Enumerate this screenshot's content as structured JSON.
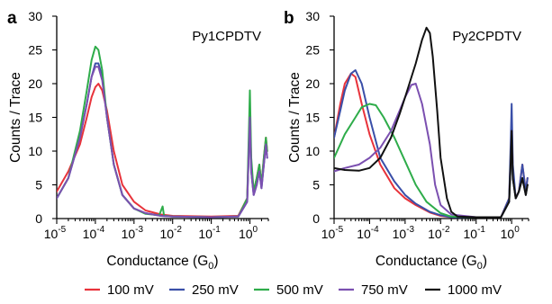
{
  "legend": {
    "placement": "bottom-center",
    "entries": [
      {
        "name": "100 mV",
        "color": "#e8333b"
      },
      {
        "name": "250 mV",
        "color": "#3a4fa8"
      },
      {
        "name": "500 mV",
        "color": "#2eac4a"
      },
      {
        "name": "750 mV",
        "color": "#7b50b0"
      },
      {
        "name": "1000 mV",
        "color": "#111111"
      }
    ]
  },
  "chart_data": [
    {
      "type": "line",
      "panel": "a",
      "molecule": "Py1CPDTV",
      "xlabel": "Conductance (G0)",
      "xlabel_parts": {
        "main": "Conductance (G",
        "sub": "0",
        "end": ")"
      },
      "ylabel": "Counts / Trace",
      "x_scale": "log",
      "xlim": [
        1e-05,
        3
      ],
      "ylim": [
        0,
        30
      ],
      "grid": false,
      "x_ticks": [
        {
          "base": "10",
          "exp": "-5",
          "value": 1e-05
        },
        {
          "base": "10",
          "exp": "-4",
          "value": 0.0001
        },
        {
          "base": "10",
          "exp": "-3",
          "value": 0.001
        },
        {
          "base": "10",
          "exp": "-2",
          "value": 0.01
        },
        {
          "base": "10",
          "exp": "-1",
          "value": 0.1
        },
        {
          "base": "10",
          "exp": "0",
          "value": 1
        }
      ],
      "y_ticks": [
        "0",
        "5",
        "10",
        "15",
        "20",
        "25",
        "30"
      ],
      "series": [
        {
          "name": "100 mV",
          "x": [
            1e-05,
            2e-05,
            4e-05,
            6e-05,
            8e-05,
            0.0001,
            0.00012,
            0.00015,
            0.0002,
            0.0003,
            0.0005,
            0.001,
            0.002,
            0.005,
            0.01,
            0.1,
            0.5,
            0.85,
            0.95,
            1.0,
            1.08,
            1.25,
            1.5,
            1.75,
            2,
            2.3,
            2.6,
            2.8
          ],
          "y": [
            4,
            7,
            11,
            15,
            18,
            19.5,
            20,
            19,
            16,
            10,
            5,
            2.5,
            1.2,
            0.6,
            0.4,
            0.3,
            0.4,
            3,
            12,
            16,
            8,
            4,
            6,
            8,
            5,
            9,
            12,
            10
          ]
        },
        {
          "name": "250 mV",
          "x": [
            1e-05,
            2e-05,
            4e-05,
            6e-05,
            8e-05,
            0.0001,
            0.00012,
            0.00015,
            0.0002,
            0.0003,
            0.0005,
            0.001,
            0.002,
            0.005,
            0.01,
            0.1,
            0.5,
            0.85,
            0.95,
            1.0,
            1.08,
            1.25,
            1.5,
            1.75,
            2,
            2.3,
            2.6,
            2.8
          ],
          "y": [
            3,
            6,
            12,
            17,
            21,
            23,
            23,
            21,
            15,
            8,
            3.5,
            1.5,
            0.8,
            0.4,
            0.3,
            0.2,
            0.3,
            2.5,
            11,
            15,
            7,
            3.5,
            5,
            7,
            4.5,
            8,
            11,
            9
          ]
        },
        {
          "name": "500 mV",
          "x": [
            1e-05,
            2e-05,
            4e-05,
            6e-05,
            8e-05,
            0.0001,
            0.00012,
            0.00015,
            0.0002,
            0.0003,
            0.0005,
            0.001,
            0.002,
            0.0045,
            0.0055,
            0.006,
            0.007,
            0.01,
            0.1,
            0.5,
            0.85,
            0.95,
            1.0,
            1.08,
            1.25,
            1.5,
            1.75,
            2,
            2.3,
            2.6,
            2.8
          ],
          "y": [
            3,
            6,
            13,
            19,
            23.5,
            25.5,
            25,
            22,
            15,
            8,
            3.5,
            1.5,
            0.7,
            0.5,
            1.8,
            0.4,
            0.4,
            0.3,
            0.2,
            0.3,
            3,
            14,
            19,
            9,
            4,
            6,
            8,
            5,
            9,
            12,
            10
          ]
        },
        {
          "name": "750 mV",
          "x": [
            1e-05,
            2e-05,
            4e-05,
            6e-05,
            8e-05,
            0.0001,
            0.00012,
            0.00015,
            0.0002,
            0.0003,
            0.0005,
            0.001,
            0.002,
            0.005,
            0.01,
            0.1,
            0.5,
            0.85,
            0.95,
            1.0,
            1.08,
            1.25,
            1.5,
            1.75,
            2,
            2.3,
            2.6,
            2.8
          ],
          "y": [
            3,
            6,
            12,
            17,
            21,
            22.5,
            22.5,
            20.5,
            15,
            8,
            3.5,
            1.5,
            0.8,
            0.4,
            0.3,
            0.2,
            0.3,
            2.5,
            11,
            15,
            7,
            3.5,
            5,
            7,
            4.5,
            8,
            11,
            9
          ]
        }
      ]
    },
    {
      "type": "line",
      "panel": "b",
      "molecule": "Py2CPDTV",
      "xlabel": "Conductance (G0)",
      "xlabel_parts": {
        "main": "Conductance (G",
        "sub": "0",
        "end": ")"
      },
      "ylabel": "Counts / Trace",
      "x_scale": "log",
      "xlim": [
        1e-05,
        3
      ],
      "ylim": [
        0,
        30
      ],
      "grid": false,
      "x_ticks": [
        {
          "base": "10",
          "exp": "-5",
          "value": 1e-05
        },
        {
          "base": "10",
          "exp": "-4",
          "value": 0.0001
        },
        {
          "base": "10",
          "exp": "-3",
          "value": 0.001
        },
        {
          "base": "10",
          "exp": "-2",
          "value": 0.01
        },
        {
          "base": "10",
          "exp": "-1",
          "value": 0.1
        },
        {
          "base": "10",
          "exp": "0",
          "value": 1
        }
      ],
      "y_ticks": [
        "0",
        "5",
        "10",
        "15",
        "20",
        "25",
        "30"
      ],
      "series": [
        {
          "name": "100 mV",
          "x": [
            1e-05,
            1.5e-05,
            2e-05,
            3e-05,
            4e-05,
            6e-05,
            0.0001,
            0.0002,
            0.0005,
            0.001,
            0.002,
            0.005,
            0.01,
            0.02,
            0.1,
            0.5,
            0.85,
            0.95,
            1.0,
            1.08,
            1.3,
            1.6,
            2.0,
            2.5,
            2.8
          ],
          "y": [
            12,
            17,
            20,
            21.5,
            21,
            17,
            12.5,
            8,
            4.5,
            3,
            2,
            0.9,
            0.4,
            0.2,
            0.2,
            0.2,
            3,
            10,
            14,
            7,
            3,
            4,
            8,
            4,
            6
          ]
        },
        {
          "name": "250 mV",
          "x": [
            1e-05,
            1.5e-05,
            2e-05,
            3e-05,
            4e-05,
            6e-05,
            0.0001,
            0.0002,
            0.0005,
            0.001,
            0.002,
            0.005,
            0.01,
            0.02,
            0.1,
            0.5,
            0.85,
            0.95,
            1.0,
            1.08,
            1.3,
            1.6,
            2.0,
            2.5,
            2.8
          ],
          "y": [
            12,
            16,
            19,
            21.5,
            22,
            20,
            15,
            9,
            5.5,
            3.5,
            2.2,
            1,
            0.5,
            0.2,
            0.2,
            0.2,
            3,
            12,
            17,
            8,
            3,
            4,
            8,
            4,
            6
          ]
        },
        {
          "name": "500 mV",
          "x": [
            1e-05,
            2e-05,
            4e-05,
            6e-05,
            0.0001,
            0.00015,
            0.00025,
            0.0005,
            0.001,
            0.002,
            0.004,
            0.01,
            0.02,
            0.1,
            0.5,
            0.85,
            0.95,
            1.0,
            1.08,
            1.3,
            1.6,
            2.0,
            2.5,
            2.8
          ],
          "y": [
            9,
            12.5,
            15,
            16.5,
            17,
            16.8,
            15,
            12,
            8.5,
            5,
            2.5,
            0.8,
            0.3,
            0.2,
            0.2,
            2.5,
            9,
            12,
            6,
            3,
            4,
            6,
            3.5,
            5
          ]
        },
        {
          "name": "750 mV",
          "x": [
            1e-05,
            2e-05,
            5e-05,
            0.0001,
            0.0002,
            0.0004,
            0.0007,
            0.001,
            0.0015,
            0.002,
            0.003,
            0.005,
            0.007,
            0.01,
            0.02,
            0.1,
            0.5,
            0.85,
            0.95,
            1.0,
            1.08,
            1.3,
            1.6,
            2.0,
            2.5,
            2.8
          ],
          "y": [
            7,
            7.5,
            8,
            9,
            10.5,
            13,
            16,
            18,
            19.8,
            20,
            17,
            11,
            5,
            2,
            0.6,
            0.2,
            0.2,
            2.5,
            9,
            13,
            6,
            3,
            4,
            6,
            3.5,
            5
          ]
        },
        {
          "name": "1000 mV",
          "x": [
            1e-05,
            2e-05,
            5e-05,
            0.0001,
            0.0002,
            0.0004,
            0.0007,
            0.001,
            0.002,
            0.003,
            0.004,
            0.005,
            0.006,
            0.008,
            0.01,
            0.015,
            0.02,
            0.03,
            0.1,
            0.5,
            0.85,
            0.95,
            1.0,
            1.08,
            1.3,
            1.6,
            2.0,
            2.5,
            2.8
          ],
          "y": [
            7.5,
            7.2,
            7.1,
            7.5,
            9,
            12,
            15.5,
            18,
            23,
            26.5,
            28.3,
            27.5,
            24,
            16,
            9,
            3,
            1,
            0.3,
            0.2,
            0.2,
            2.5,
            9,
            13,
            6,
            3,
            4,
            6,
            3.5,
            5
          ]
        }
      ]
    }
  ]
}
